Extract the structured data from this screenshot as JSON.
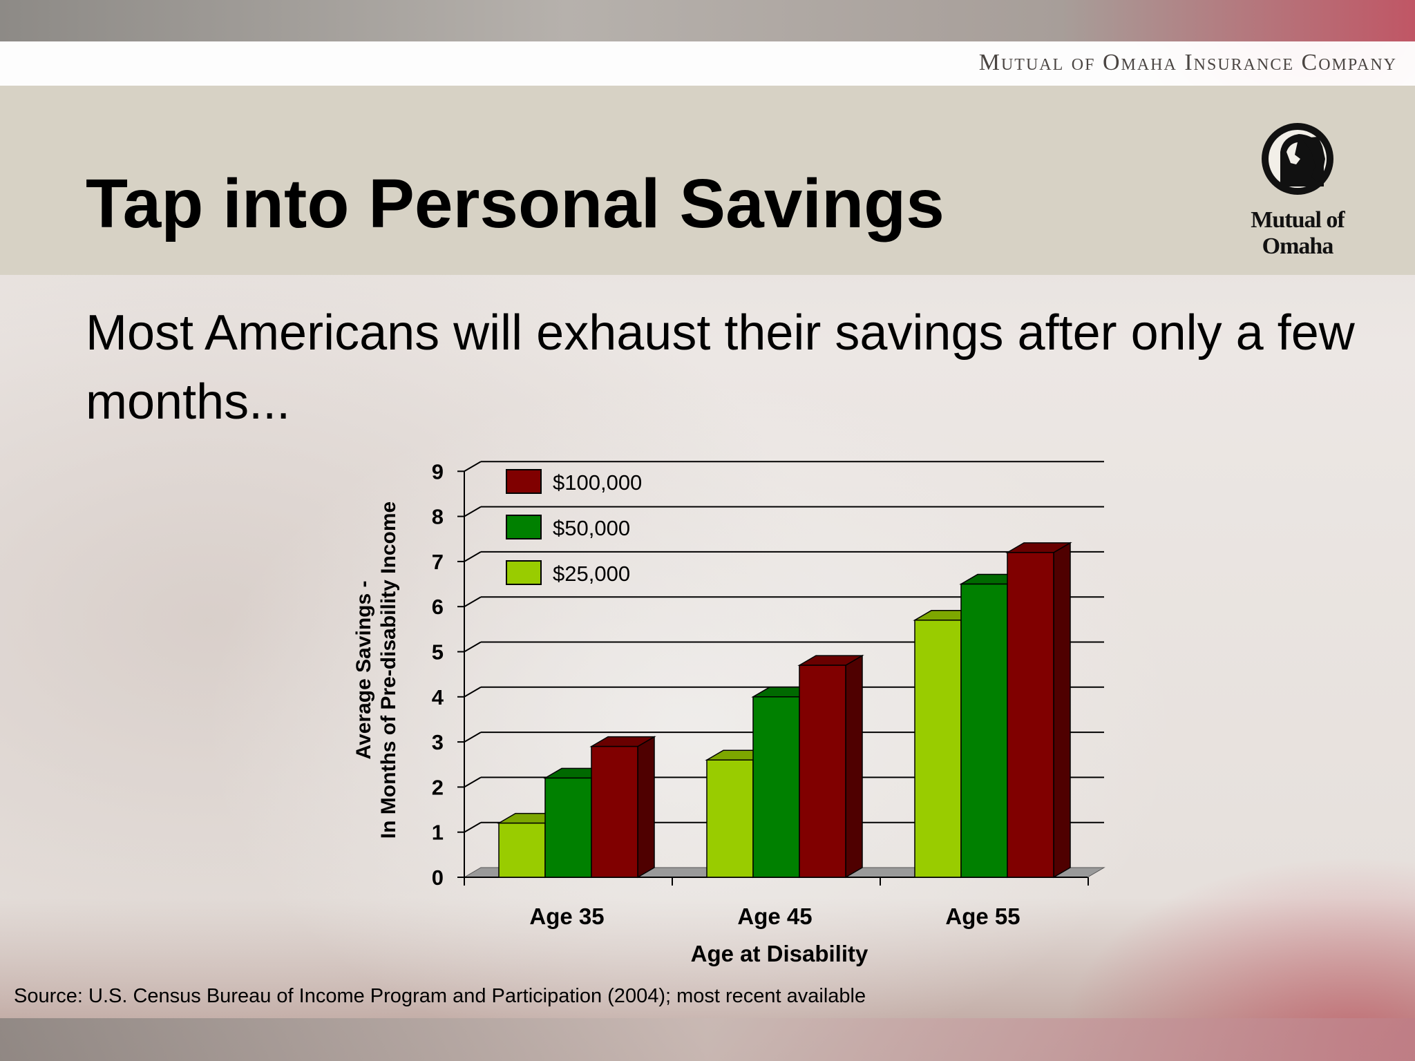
{
  "header": {
    "company_name": "Mutual of Omaha Insurance Company",
    "logo_text": "Mutual of Omaha"
  },
  "slide": {
    "title": "Tap into Personal Savings",
    "subtitle": "Most Americans will exhaust their savings after only a few months...",
    "source_note": "Source: U.S. Census Bureau of Income Program and Participation (2004); most recent available"
  },
  "colors": {
    "title_band": "#d7d2c5",
    "series_100k": "#800000",
    "series_50k": "#008000",
    "series_25k": "#99cc00"
  },
  "chart_data": {
    "type": "bar",
    "title": "",
    "xlabel": "Age at Disability",
    "ylabel": "Average Savings - In Months of Pre-disability Income",
    "ylabel_lines": [
      "Average Savings -",
      "In Months of Pre-disability Income"
    ],
    "categories": [
      "Age 35",
      "Age 45",
      "Age 55"
    ],
    "ylim": [
      0,
      9
    ],
    "yticks": [
      0,
      1,
      2,
      3,
      4,
      5,
      6,
      7,
      8,
      9
    ],
    "grid": true,
    "legend_position": "top-left inside plot",
    "series": [
      {
        "name": "$25,000",
        "color": "#99cc00",
        "values": [
          1.2,
          2.6,
          5.7
        ]
      },
      {
        "name": "$50,000",
        "color": "#008000",
        "values": [
          2.2,
          4.0,
          6.5
        ]
      },
      {
        "name": "$100,000",
        "color": "#800000",
        "values": [
          2.9,
          4.7,
          7.2
        ]
      }
    ],
    "legend_order": [
      "$100,000",
      "$50,000",
      "$25,000"
    ]
  }
}
